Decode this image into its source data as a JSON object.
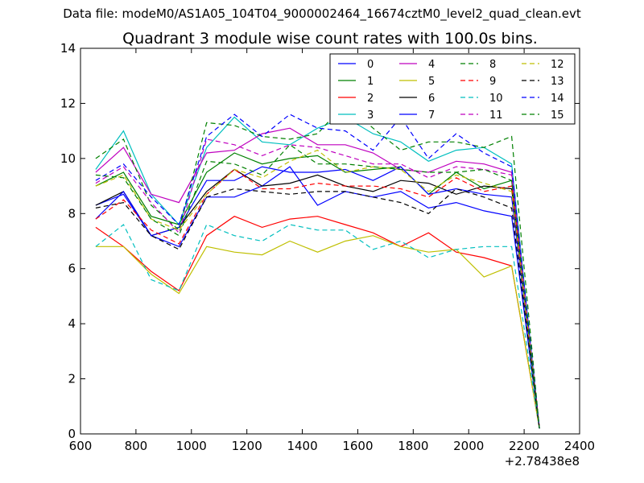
{
  "header": {
    "file_line": "Data file: modeM0/AS1A05_104T04_9000002464_16674cztM0_level2_quad_clean.evt"
  },
  "chart_data": {
    "type": "line",
    "title": "Quadrant 3 module wise count rates with 100.0s bins.",
    "xlabel": "",
    "ylabel": "",
    "x_offset_label": "+2.78438e8",
    "xlim": [
      600,
      2400
    ],
    "ylim": [
      0,
      14
    ],
    "xticks": [
      600,
      800,
      1000,
      1200,
      1400,
      1600,
      1800,
      2000,
      2200,
      2400
    ],
    "yticks": [
      0,
      2,
      4,
      6,
      8,
      10,
      12,
      14
    ],
    "grid": false,
    "legend_position": "top-right",
    "legend_columns": 4,
    "x": [
      655,
      755,
      855,
      955,
      1055,
      1155,
      1255,
      1355,
      1455,
      1555,
      1655,
      1755,
      1855,
      1955,
      2055,
      2155,
      2255
    ],
    "series": [
      {
        "name": "0",
        "color": "#0000ff",
        "dash": "solid",
        "values": [
          8.3,
          8.7,
          7.2,
          6.8,
          8.6,
          8.6,
          9.0,
          9.7,
          8.3,
          8.8,
          8.6,
          8.8,
          8.2,
          8.4,
          8.1,
          7.9,
          0.2
        ]
      },
      {
        "name": "1",
        "color": "#008000",
        "dash": "solid",
        "values": [
          9.0,
          9.5,
          7.9,
          7.6,
          9.5,
          10.2,
          9.8,
          10.0,
          10.1,
          9.5,
          9.6,
          9.7,
          8.7,
          9.5,
          8.9,
          9.2,
          0.2
        ]
      },
      {
        "name": "2",
        "color": "#ff0000",
        "dash": "solid",
        "values": [
          7.5,
          6.8,
          5.9,
          5.2,
          7.2,
          7.9,
          7.5,
          7.8,
          7.9,
          7.6,
          7.3,
          6.8,
          7.3,
          6.6,
          6.4,
          6.1,
          0.2
        ]
      },
      {
        "name": "3",
        "color": "#00bfbf",
        "dash": "solid",
        "values": [
          9.6,
          11.0,
          8.7,
          7.6,
          10.4,
          11.5,
          10.6,
          10.5,
          11.1,
          11.5,
          10.9,
          10.6,
          9.9,
          10.3,
          10.4,
          9.8,
          0.2
        ]
      },
      {
        "name": "4",
        "color": "#bf00bf",
        "dash": "solid",
        "values": [
          9.5,
          10.4,
          8.7,
          8.4,
          10.2,
          10.3,
          10.9,
          11.1,
          10.5,
          10.5,
          10.2,
          9.6,
          9.5,
          9.9,
          9.8,
          9.5,
          0.2
        ]
      },
      {
        "name": "5",
        "color": "#bfbf00",
        "dash": "solid",
        "values": [
          6.8,
          6.8,
          5.8,
          5.1,
          6.8,
          6.6,
          6.5,
          7.0,
          6.6,
          7.0,
          7.2,
          6.8,
          6.6,
          6.7,
          5.7,
          6.1,
          0.2
        ]
      },
      {
        "name": "6",
        "color": "#000000",
        "dash": "solid",
        "values": [
          8.3,
          8.8,
          7.2,
          7.5,
          8.8,
          9.6,
          9.0,
          9.1,
          9.4,
          9.0,
          8.8,
          9.2,
          9.1,
          8.7,
          9.0,
          8.9,
          0.2
        ]
      },
      {
        "name": "7",
        "color": "#0000ff",
        "dash": "solid",
        "values": [
          7.8,
          8.8,
          7.2,
          7.5,
          9.2,
          9.2,
          9.7,
          9.5,
          9.5,
          9.6,
          9.2,
          9.7,
          8.7,
          8.9,
          8.7,
          8.6,
          0.2
        ]
      },
      {
        "name": "8",
        "color": "#008000",
        "dash": "dashed",
        "values": [
          10.0,
          10.7,
          8.3,
          7.4,
          11.3,
          11.2,
          10.8,
          10.7,
          10.9,
          12.0,
          11.1,
          10.3,
          10.6,
          10.6,
          10.4,
          10.8,
          0.2
        ]
      },
      {
        "name": "9",
        "color": "#ff0000",
        "dash": "dashed",
        "values": [
          7.8,
          8.5,
          7.4,
          6.9,
          8.7,
          9.6,
          8.9,
          8.9,
          9.1,
          9.0,
          9.0,
          8.9,
          8.6,
          9.3,
          8.8,
          9.0,
          0.2
        ]
      },
      {
        "name": "10",
        "color": "#00bfbf",
        "dash": "dashed",
        "values": [
          6.8,
          7.6,
          5.6,
          5.2,
          7.6,
          7.2,
          7.0,
          7.6,
          7.4,
          7.4,
          6.7,
          7.0,
          6.4,
          6.7,
          6.8,
          6.8,
          0.2
        ]
      },
      {
        "name": "11",
        "color": "#bf00bf",
        "dash": "dashed",
        "values": [
          9.1,
          9.7,
          8.4,
          7.3,
          10.7,
          10.5,
          10.1,
          10.5,
          10.4,
          10.1,
          9.8,
          9.8,
          9.3,
          9.7,
          9.6,
          9.4,
          0.2
        ]
      },
      {
        "name": "12",
        "color": "#bfbf00",
        "dash": "dashed",
        "values": [
          9.0,
          9.4,
          7.8,
          7.4,
          8.7,
          9.6,
          9.3,
          9.9,
          10.3,
          9.5,
          9.7,
          9.6,
          8.8,
          9.4,
          9.1,
          8.8,
          0.2
        ]
      },
      {
        "name": "13",
        "color": "#000000",
        "dash": "dashed",
        "values": [
          8.2,
          8.4,
          7.2,
          6.7,
          8.6,
          8.9,
          8.8,
          8.7,
          8.8,
          8.8,
          8.6,
          8.4,
          8.0,
          8.9,
          8.6,
          8.2,
          0.2
        ]
      },
      {
        "name": "14",
        "color": "#0000ff",
        "dash": "dashed",
        "values": [
          9.2,
          9.8,
          8.6,
          7.6,
          10.8,
          11.6,
          10.8,
          11.6,
          11.1,
          11.0,
          10.3,
          11.5,
          10.0,
          10.9,
          10.2,
          9.7,
          0.2
        ]
      },
      {
        "name": "15",
        "color": "#008000",
        "dash": "dashed",
        "values": [
          9.4,
          9.3,
          7.8,
          7.2,
          9.9,
          9.8,
          9.4,
          10.5,
          9.8,
          9.8,
          9.7,
          9.6,
          9.5,
          9.5,
          9.6,
          9.2,
          0.2
        ]
      }
    ]
  }
}
